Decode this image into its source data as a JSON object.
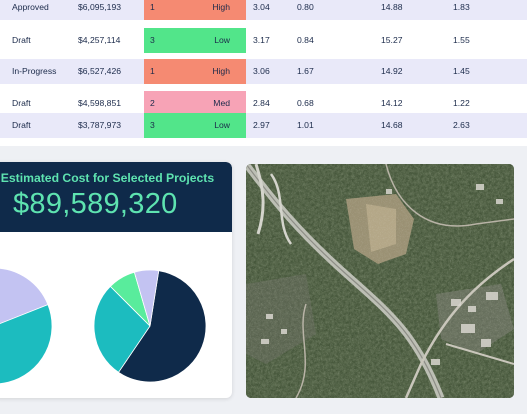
{
  "table": {
    "rows": [
      {
        "status": "Approved",
        "cost": "$6,095,193",
        "priority_num": "1",
        "priority": "High",
        "m1": "3.04",
        "m2": "0.80",
        "m3": "14.88",
        "m4": "1.83"
      },
      {
        "status": "Draft",
        "cost": "$4,257,114",
        "priority_num": "3",
        "priority": "Low",
        "m1": "3.17",
        "m2": "0.84",
        "m3": "15.27",
        "m4": "1.55"
      },
      {
        "status": "In-Progress",
        "cost": "$6,527,426",
        "priority_num": "1",
        "priority": "High",
        "m1": "3.06",
        "m2": "1.67",
        "m3": "14.92",
        "m4": "1.45"
      },
      {
        "status": "Draft",
        "cost": "$4,598,851",
        "priority_num": "2",
        "priority": "Med",
        "m1": "2.84",
        "m2": "0.68",
        "m3": "14.12",
        "m4": "1.22"
      },
      {
        "status": "Draft",
        "cost": "$3,787,973",
        "priority_num": "3",
        "priority": "Low",
        "m1": "2.97",
        "m2": "1.01",
        "m3": "14.68",
        "m4": "2.63"
      }
    ]
  },
  "kpi": {
    "title": "l Estimated Cost for Selected Projects",
    "value": "$89,589,320"
  },
  "chart_data": [
    {
      "type": "pie",
      "slices": [
        {
          "share": 0.19,
          "color": "#c3c3f2"
        },
        {
          "share": 0.81,
          "color": "#1cbcbf"
        }
      ]
    },
    {
      "type": "pie",
      "slices": [
        {
          "share": 0.57,
          "color": "#0f2a4a"
        },
        {
          "share": 0.28,
          "color": "#1cbcbf"
        },
        {
          "share": 0.08,
          "color": "#59ec9c"
        },
        {
          "share": 0.07,
          "color": "#c3c3f2"
        }
      ]
    }
  ],
  "colors": {
    "priority_high": "#f58a72",
    "priority_low": "#52e58a",
    "priority_med": "#f7a3b6",
    "header_navy": "#0f2a4a",
    "accent_mint": "#5ee3b0"
  }
}
